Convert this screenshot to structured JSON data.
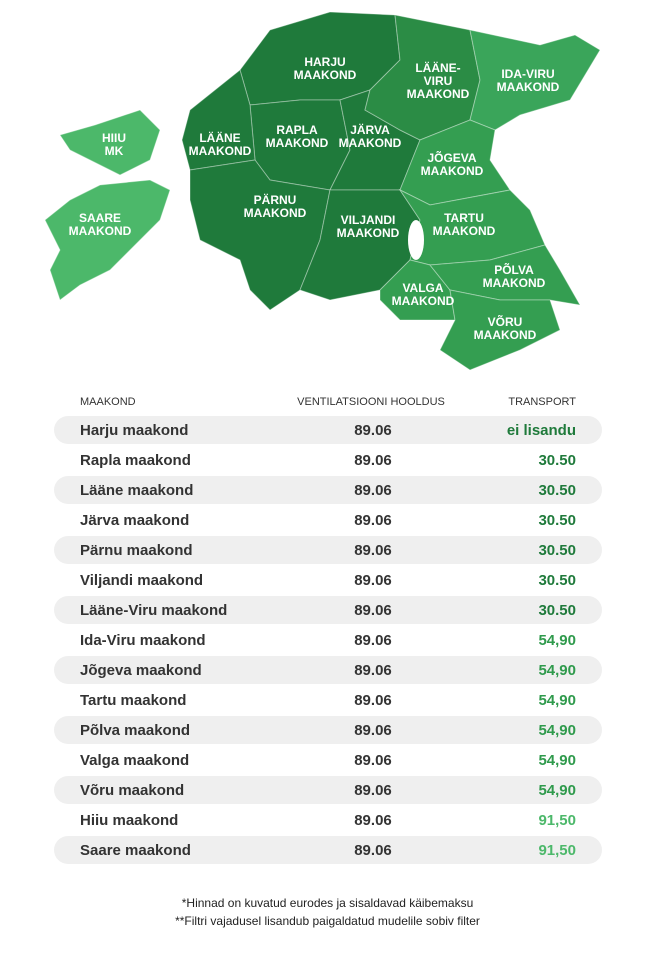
{
  "map": {
    "regions": [
      {
        "lines": [
          "HARJU",
          "MAAKOND"
        ]
      },
      {
        "lines": [
          "RAPLA",
          "MAAKOND"
        ]
      },
      {
        "lines": [
          "LÄÄNE",
          "MAAKOND"
        ]
      },
      {
        "lines": [
          "JÄRVA",
          "MAAKOND"
        ]
      },
      {
        "lines": [
          "PÄRNU",
          "MAAKOND"
        ]
      },
      {
        "lines": [
          "VILJANDI",
          "MAAKOND"
        ]
      },
      {
        "lines": [
          "LÄÄNE-",
          "VIRU",
          "MAAKOND"
        ]
      },
      {
        "lines": [
          "IDA-VIRU",
          "MAAKOND"
        ]
      },
      {
        "lines": [
          "JÕGEVA",
          "MAAKOND"
        ]
      },
      {
        "lines": [
          "TARTU",
          "MAAKOND"
        ]
      },
      {
        "lines": [
          "VALGA",
          "MAAKOND"
        ]
      },
      {
        "lines": [
          "PÕLVA",
          "MAAKOND"
        ]
      },
      {
        "lines": [
          "VÕRU",
          "MAAKOND"
        ]
      },
      {
        "lines": [
          "HIIU",
          "MK"
        ]
      },
      {
        "lines": [
          "SAARE",
          "MAAKOND"
        ]
      }
    ]
  },
  "table": {
    "header": [
      "MAAKOND",
      "VENTILATSIOONI HOOLDUS",
      "TRANSPORT"
    ],
    "rows": [
      {
        "cells": [
          "Harju maakond",
          "89.06",
          "ei lisandu"
        ],
        "color": "#1f7a3b"
      },
      {
        "cells": [
          "Rapla maakond",
          "89.06",
          "30.50"
        ],
        "color": "#1f7a3b"
      },
      {
        "cells": [
          "Lääne maakond",
          "89.06",
          "30.50"
        ],
        "color": "#1f7a3b"
      },
      {
        "cells": [
          "Järva maakond",
          "89.06",
          "30.50"
        ],
        "color": "#1f7a3b"
      },
      {
        "cells": [
          "Pärnu maakond",
          "89.06",
          "30.50"
        ],
        "color": "#1f7a3b"
      },
      {
        "cells": [
          "Viljandi maakond",
          "89.06",
          "30.50"
        ],
        "color": "#1f7a3b"
      },
      {
        "cells": [
          "Lääne-Viru maakond",
          "89.06",
          "30.50"
        ],
        "color": "#1f7a3b"
      },
      {
        "cells": [
          "Ida-Viru maakond",
          "89.06",
          "54,90"
        ],
        "color": "#2f9a4c"
      },
      {
        "cells": [
          "Jõgeva maakond",
          "89.06",
          "54,90"
        ],
        "color": "#2f9a4c"
      },
      {
        "cells": [
          "Tartu maakond",
          "89.06",
          "54,90"
        ],
        "color": "#2f9a4c"
      },
      {
        "cells": [
          "Põlva maakond",
          "89.06",
          "54,90"
        ],
        "color": "#2f9a4c"
      },
      {
        "cells": [
          "Valga maakond",
          "89.06",
          "54,90"
        ],
        "color": "#2f9a4c"
      },
      {
        "cells": [
          "Võru maakond",
          "89.06",
          "54,90"
        ],
        "color": "#2f9a4c"
      },
      {
        "cells": [
          "Hiiu maakond",
          "89.06",
          "91,50"
        ],
        "color": "#4cb86a"
      },
      {
        "cells": [
          "Saare maakond",
          "89.06",
          "91,50"
        ],
        "color": "#4cb86a"
      }
    ]
  },
  "footnotes": [
    "*Hinnad on kuvatud eurodes ja sisaldavad käibemaksu",
    "**Filtri vajadusel lisandub paigaldatud mudelile sobiv filter"
  ]
}
